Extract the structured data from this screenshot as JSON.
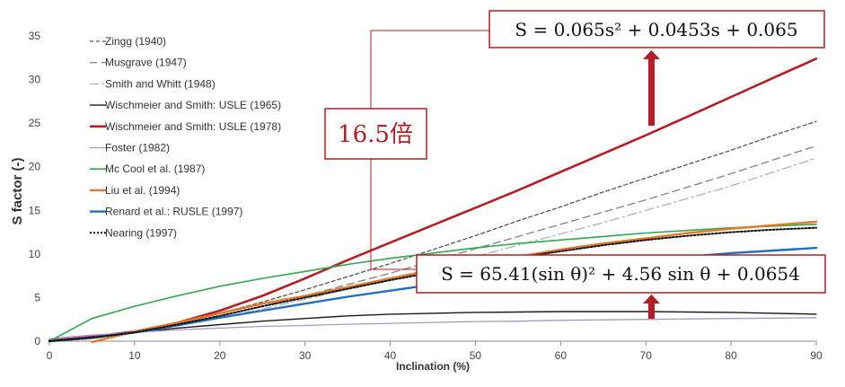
{
  "chart_data": {
    "type": "line",
    "xlabel": "Inclination (%)",
    "ylabel": "S  factor (-)",
    "xlim": [
      0,
      90
    ],
    "ylim": [
      0,
      35
    ],
    "xticks": [
      "0",
      "10",
      "20",
      "30",
      "40",
      "50",
      "60",
      "70",
      "80",
      "90"
    ],
    "yticks": [
      "0",
      "5",
      "10",
      "15",
      "20",
      "25",
      "30",
      "35"
    ],
    "legend_position": "top-left",
    "grid": false,
    "x": [
      0,
      5,
      10,
      15,
      20,
      25,
      30,
      35,
      40,
      45,
      50,
      55,
      60,
      65,
      70,
      75,
      80,
      85,
      90
    ],
    "series": [
      {
        "name": "Zingg (1940)",
        "color": "#555555",
        "dash": "4,3",
        "width": 1.3,
        "values": [
          0,
          0.3,
          1.0,
          2.0,
          3.2,
          4.5,
          5.9,
          7.4,
          8.9,
          10.5,
          12.1,
          13.8,
          15.4,
          17.1,
          18.7,
          20.3,
          21.9,
          23.6,
          25.2
        ]
      },
      {
        "name": "Musgrave (1947)",
        "color": "#888888",
        "dash": "8,5",
        "width": 1.4,
        "values": [
          0,
          0.3,
          1.0,
          1.9,
          2.9,
          4.0,
          5.2,
          6.5,
          7.8,
          9.2,
          10.6,
          12.0,
          13.4,
          14.8,
          16.2,
          17.7,
          19.2,
          20.8,
          22.4
        ]
      },
      {
        "name": "Smith and Whitt (1948)",
        "color": "#b0b0b0",
        "dash": "10,4,2,4",
        "width": 1.3,
        "values": [
          0,
          0.3,
          1.0,
          1.8,
          2.7,
          3.7,
          4.8,
          6.0,
          7.2,
          8.4,
          9.7,
          11.0,
          12.3,
          13.6,
          15.0,
          16.4,
          17.8,
          19.4,
          21.0
        ]
      },
      {
        "name": "Wischmeier and Smith: USLE (1965)",
        "color": "#1a1a1a",
        "dash": "",
        "width": 1.4,
        "values": [
          0.0,
          0.5,
          1.0,
          1.5,
          1.9,
          2.3,
          2.6,
          2.9,
          3.1,
          3.2,
          3.3,
          3.35,
          3.4,
          3.4,
          3.4,
          3.35,
          3.3,
          3.2,
          3.1
        ]
      },
      {
        "name": "Wischmeier and Smith: USLE (1978)",
        "color": "#b41e24",
        "dash": "",
        "width": 2.6,
        "values": [
          0.07,
          0.5,
          1.1,
          2.1,
          3.5,
          5.2,
          7.2,
          9.3,
          11.3,
          13.3,
          15.3,
          17.3,
          19.4,
          21.5,
          23.6,
          25.8,
          28.0,
          30.2,
          32.4
        ]
      },
      {
        "name": "Foster (1982)",
        "color": "#a898c8",
        "dash": "",
        "width": 1.3,
        "values": [
          0.3,
          0.7,
          1.0,
          1.3,
          1.5,
          1.7,
          1.8,
          1.95,
          2.05,
          2.15,
          2.25,
          2.3,
          2.4,
          2.45,
          2.5,
          2.55,
          2.6,
          2.65,
          2.7
        ]
      },
      {
        "name": "Mc Cool et al.  (1987)",
        "color": "#2fa84f",
        "dash": "",
        "width": 1.6,
        "values": [
          0.0,
          2.6,
          4.0,
          5.2,
          6.3,
          7.2,
          8.0,
          8.8,
          9.5,
          10.1,
          10.7,
          11.2,
          11.6,
          12.0,
          12.4,
          12.7,
          13.0,
          13.2,
          13.4
        ]
      },
      {
        "name": "Liu et al. (1994)",
        "color": "#e0782a",
        "dash": "",
        "width": 2.4,
        "values": [
          null,
          -0.1,
          1.1,
          2.1,
          3.2,
          4.3,
          5.2,
          6.2,
          7.2,
          8.1,
          8.9,
          9.7,
          10.5,
          11.2,
          11.8,
          12.4,
          12.9,
          13.3,
          13.7
        ]
      },
      {
        "name": "Renard et al.: RUSLE (1997)",
        "color": "#1f6fc0",
        "dash": "",
        "width": 2.4,
        "values": [
          0.0,
          0.4,
          1.0,
          1.8,
          2.7,
          3.5,
          4.3,
          5.1,
          5.8,
          6.5,
          7.2,
          7.8,
          8.3,
          8.8,
          9.3,
          9.7,
          10.1,
          10.4,
          10.7
        ]
      },
      {
        "name": "Nearing (1997)",
        "color": "#111111",
        "dash": "2,2",
        "width": 2.0,
        "values": [
          0.0,
          0.4,
          1.0,
          1.9,
          2.9,
          4.0,
          5.0,
          6.0,
          7.0,
          7.9,
          8.8,
          9.6,
          10.3,
          11.0,
          11.6,
          12.1,
          12.5,
          12.8,
          13.0
        ]
      }
    ]
  },
  "annotations": {
    "equation_top": {
      "text": "S = 0.065s² + 0.0453s + 0.065"
    },
    "equation_bottom": {
      "text": "S = 65.41(sin θ)² + 4.56 sin θ + 0.0654"
    },
    "ratio_note": {
      "text": "16.5倍"
    },
    "border_color": "#b41e24",
    "arrow_color": "#b41e24"
  }
}
